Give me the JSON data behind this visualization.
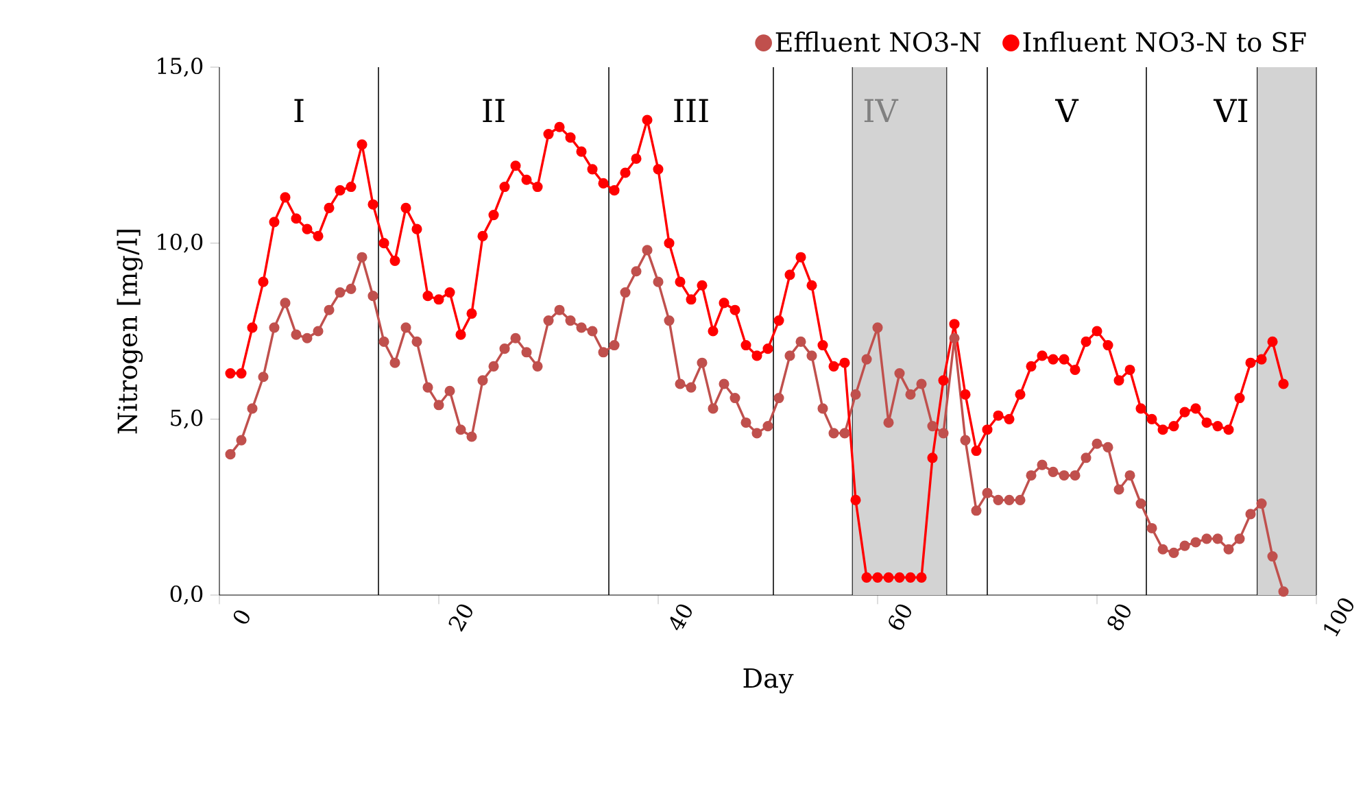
{
  "chart_data": {
    "type": "line",
    "xlabel": "Day",
    "ylabel": "Nitrogen [mg/l]",
    "x": [
      1,
      2,
      3,
      4,
      5,
      6,
      7,
      8,
      9,
      10,
      11,
      12,
      13,
      14,
      15,
      16,
      17,
      18,
      19,
      20,
      21,
      22,
      23,
      24,
      25,
      26,
      27,
      28,
      29,
      30,
      31,
      32,
      33,
      34,
      35,
      36,
      37,
      38,
      39,
      40,
      41,
      42,
      43,
      44,
      45,
      46,
      47,
      48,
      49,
      50,
      51,
      52,
      53,
      54,
      55,
      56,
      57,
      58,
      59,
      60,
      61,
      62,
      63,
      64,
      65,
      66,
      67,
      68,
      69,
      70,
      71,
      72,
      73,
      74,
      75,
      76,
      77,
      78,
      79,
      80,
      81,
      82,
      83,
      84,
      85,
      86,
      87,
      88,
      89,
      90,
      91,
      92,
      93,
      94,
      95,
      96,
      97
    ],
    "series": [
      {
        "name": "Effluent NO3-N",
        "color": "#c0504d",
        "values": [
          4.0,
          4.4,
          5.3,
          6.2,
          7.6,
          8.3,
          7.4,
          7.3,
          7.5,
          8.1,
          8.6,
          8.7,
          9.6,
          8.5,
          7.2,
          6.6,
          7.6,
          7.2,
          5.9,
          5.4,
          5.8,
          4.7,
          4.5,
          6.1,
          6.5,
          7.0,
          7.3,
          6.9,
          6.5,
          7.8,
          8.1,
          7.8,
          7.6,
          7.5,
          6.9,
          7.1,
          8.6,
          9.2,
          9.8,
          8.9,
          7.8,
          6.0,
          5.9,
          6.6,
          5.3,
          6.0,
          5.6,
          4.9,
          4.6,
          4.8,
          5.6,
          6.8,
          7.2,
          6.8,
          5.3,
          4.6,
          4.6,
          5.7,
          6.7,
          7.6,
          4.9,
          6.3,
          5.7,
          6.0,
          4.8,
          4.6,
          7.3,
          4.4,
          2.4,
          2.9,
          2.7,
          2.7,
          2.7,
          3.4,
          3.7,
          3.5,
          3.4,
          3.4,
          3.9,
          4.3,
          4.2,
          3.0,
          3.4,
          2.6,
          1.9,
          1.3,
          1.2,
          1.4,
          1.5,
          1.6,
          1.6,
          1.3,
          1.6,
          2.3,
          2.6,
          1.1,
          0.1
        ]
      },
      {
        "name": "Influent NO3-N to SF",
        "color": "#ff0000",
        "values": [
          6.3,
          6.3,
          7.6,
          8.9,
          10.6,
          11.3,
          10.7,
          10.4,
          10.2,
          11.0,
          11.5,
          11.6,
          12.8,
          11.1,
          10.0,
          9.5,
          11.0,
          10.4,
          8.5,
          8.4,
          8.6,
          7.4,
          8.0,
          10.2,
          10.8,
          11.6,
          12.2,
          11.8,
          11.6,
          13.1,
          13.3,
          13.0,
          12.6,
          12.1,
          11.7,
          11.5,
          12.0,
          12.4,
          13.5,
          12.1,
          10.0,
          8.9,
          8.4,
          8.8,
          7.5,
          8.3,
          8.1,
          7.1,
          6.8,
          7.0,
          7.8,
          9.1,
          9.6,
          8.8,
          7.1,
          6.5,
          6.6,
          2.7,
          0.5,
          0.5,
          0.5,
          0.5,
          0.5,
          0.5,
          3.9,
          6.1,
          7.7,
          5.7,
          4.1,
          4.7,
          5.1,
          5.0,
          5.7,
          6.5,
          6.8,
          6.7,
          6.7,
          6.4,
          7.2,
          7.5,
          7.1,
          6.1,
          6.4,
          5.3,
          5.0,
          4.7,
          4.8,
          5.2,
          5.3,
          4.9,
          4.8,
          4.7,
          5.6,
          6.6,
          6.7,
          7.2,
          6.0
        ]
      }
    ],
    "xlim": [
      0,
      100
    ],
    "xticks": [
      0,
      20,
      40,
      60,
      80,
      100
    ],
    "ylim": [
      0,
      15
    ],
    "yticks": [
      {
        "value": 0,
        "label": "0,0"
      },
      {
        "value": 5,
        "label": "5,0"
      },
      {
        "value": 10,
        "label": "10,0"
      },
      {
        "value": 15,
        "label": "15,0"
      }
    ],
    "bands": [
      {
        "axis": "x",
        "from": 57.7,
        "to": 66.3,
        "color": "#d3d3d3"
      },
      {
        "axis": "x",
        "from": 94.6,
        "to": 100,
        "color": "#d3d3d3"
      }
    ],
    "ref_lines": [
      {
        "axis": "x",
        "value": 14.5,
        "color": "#000000"
      },
      {
        "axis": "x",
        "value": 35.5,
        "color": "#000000"
      },
      {
        "axis": "x",
        "value": 50.5,
        "color": "#000000"
      },
      {
        "axis": "x",
        "value": 70,
        "color": "#000000"
      },
      {
        "axis": "x",
        "value": 84.5,
        "color": "#000000"
      }
    ],
    "annotations": [
      "I",
      "II",
      "III",
      "IV",
      "V",
      "VI"
    ],
    "legend": "top right",
    "marker": "circle",
    "line_style": "solid",
    "grid": false
  }
}
